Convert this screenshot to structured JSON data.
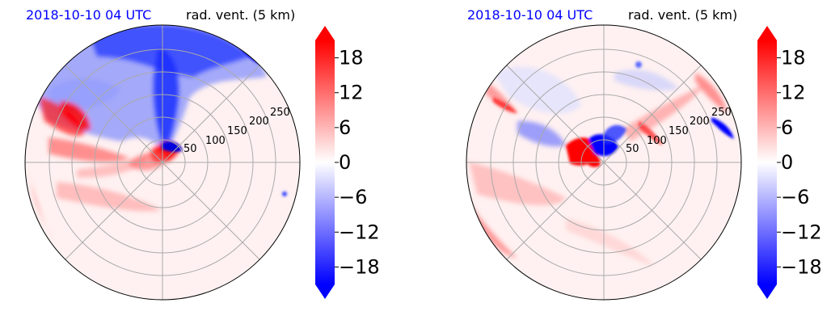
{
  "panels": [
    {
      "title_left": "2018-10-10 04 UTC",
      "title_right": "rad. vent. (5 km)",
      "radial_ticks": [
        "50",
        "100",
        "150",
        "200",
        "250"
      ]
    },
    {
      "title_left": "2018-10-10 04 UTC",
      "title_right": "rad. vent. (5 km)",
      "radial_ticks": [
        "50",
        "100",
        "150",
        "200",
        "250"
      ]
    }
  ],
  "colorbar": {
    "ticks": [
      "18",
      "12",
      "6",
      "0",
      "−6",
      "−12",
      "−18"
    ],
    "tick_values": [
      18,
      12,
      6,
      0,
      -6,
      -12,
      -18
    ],
    "range": [
      -21,
      21
    ],
    "colors": {
      "negative": "#0000ff",
      "zero": "#ffffff",
      "positive": "#ff0000"
    }
  },
  "chart_data": [
    {
      "type": "heatmap",
      "projection": "polar",
      "title": "2018-10-10 04 UTC",
      "subtitle": "rad. vent. (5 km)",
      "radial_ticks": [
        50,
        100,
        150,
        200,
        250
      ],
      "colorbar_ticks": [
        -18,
        -12,
        -6,
        0,
        6,
        12,
        18
      ],
      "colorbar_range": [
        -21,
        21
      ],
      "grid": true
    },
    {
      "type": "heatmap",
      "projection": "polar",
      "title": "2018-10-10 04 UTC",
      "subtitle": "rad. vent. (5 km)",
      "radial_ticks": [
        50,
        100,
        150,
        200,
        250
      ],
      "colorbar_ticks": [
        -18,
        -12,
        -6,
        0,
        6,
        12,
        18
      ],
      "colorbar_range": [
        -21,
        21
      ],
      "grid": true
    }
  ]
}
